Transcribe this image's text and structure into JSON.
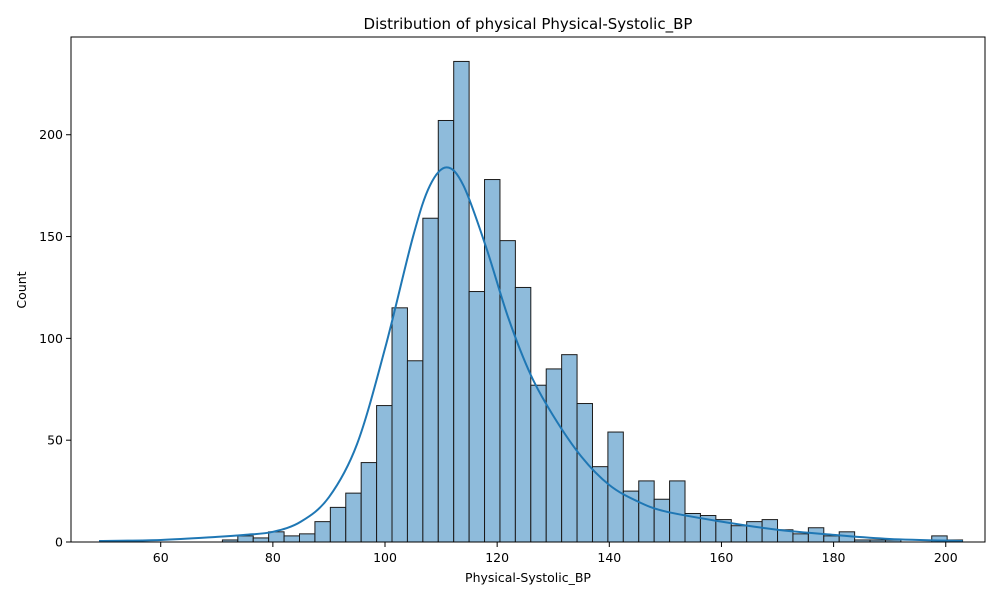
{
  "chart_data": {
    "type": "bar",
    "title": "Distribution of physical Physical-Systolic_BP",
    "xlabel": "Physical-Systolic_BP",
    "ylabel": "Count",
    "xlim": [
      44,
      207
    ],
    "ylim": [
      0,
      248
    ],
    "x_ticks": [
      60,
      80,
      100,
      120,
      140,
      160,
      180,
      200
    ],
    "y_ticks": [
      0,
      50,
      100,
      150,
      200
    ],
    "bin_start": 49,
    "bin_width": 2.75,
    "counts": [
      0,
      0,
      0,
      0,
      0,
      0,
      0,
      0,
      1,
      3,
      2,
      5,
      3,
      4,
      10,
      17,
      24,
      39,
      67,
      115,
      89,
      159,
      207,
      236,
      123,
      178,
      148,
      125,
      77,
      85,
      92,
      68,
      37,
      54,
      25,
      30,
      21,
      30,
      14,
      13,
      11,
      8,
      10,
      11,
      6,
      4,
      7,
      3,
      5,
      1,
      1,
      1,
      0,
      0,
      3,
      1
    ],
    "kde": {
      "x": [
        49,
        60,
        70,
        75,
        80,
        85,
        90,
        95,
        100,
        105,
        108,
        111,
        114,
        118,
        122,
        126,
        130,
        135,
        140,
        145,
        150,
        160,
        170,
        180,
        190,
        203
      ],
      "y": [
        0.5,
        1,
        2.5,
        3.5,
        5,
        10,
        22,
        48,
        95,
        150,
        175,
        184,
        175,
        145,
        110,
        82,
        62,
        42,
        28,
        20,
        15,
        10,
        6,
        3.5,
        1.5,
        0.5
      ]
    },
    "bar_color": "#8ebbdb",
    "bar_edge_color": "#1a1a1a",
    "kde_color": "#1f77b4",
    "grid": false,
    "legend": "none"
  }
}
